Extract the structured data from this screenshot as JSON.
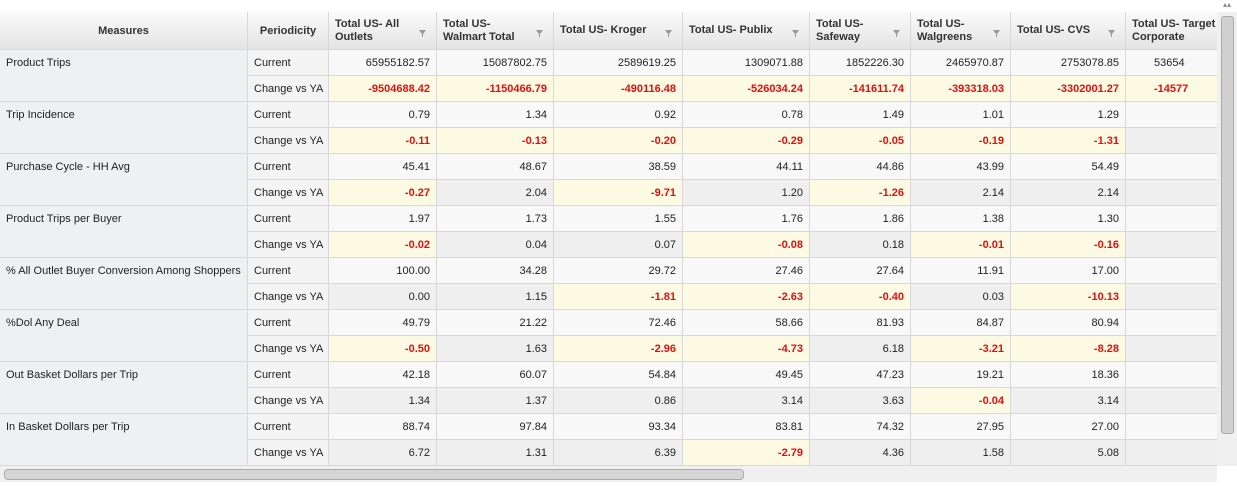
{
  "table": {
    "headers": [
      "Measures",
      "Periodicity",
      "Total US- All Outlets",
      "Total US- Walmart Total",
      "Total US- Kroger",
      "Total US- Publix",
      "Total US- Safeway",
      "Total US- Walgreens",
      "Total US- CVS",
      "Total US- Target Corporate"
    ],
    "rows": [
      {
        "measure": "Product Trips",
        "current": [
          "Current",
          "65955182.57",
          "15087802.75",
          "2589619.25",
          "1309071.88",
          "1852226.30",
          "2465970.87",
          "2753078.85",
          "53654"
        ],
        "change": [
          "Change vs YA",
          "-9504688.42",
          "-1150466.79",
          "-490116.48",
          "-526034.24",
          "-141611.74",
          "-393318.03",
          "-3302001.27",
          "-14577"
        ]
      },
      {
        "measure": "Trip Incidence",
        "current": [
          "Current",
          "0.79",
          "1.34",
          "0.92",
          "0.78",
          "1.49",
          "1.01",
          "1.29"
        ],
        "change": [
          "Change vs YA",
          "-0.11",
          "-0.13",
          "-0.20",
          "-0.29",
          "-0.05",
          "-0.19",
          "-1.31"
        ]
      },
      {
        "measure": "Purchase Cycle - HH Avg",
        "current": [
          "Current",
          "45.41",
          "48.67",
          "38.59",
          "44.11",
          "44.86",
          "43.99",
          "54.49"
        ],
        "change": [
          "Change vs YA",
          "-0.27",
          "2.04",
          "-9.71",
          "1.20",
          "-1.26",
          "2.14",
          "2.14"
        ]
      },
      {
        "measure": "Product Trips per Buyer",
        "current": [
          "Current",
          "1.97",
          "1.73",
          "1.55",
          "1.76",
          "1.86",
          "1.38",
          "1.30"
        ],
        "change": [
          "Change vs YA",
          "-0.02",
          "0.04",
          "0.07",
          "-0.08",
          "0.18",
          "-0.01",
          "-0.16"
        ]
      },
      {
        "measure": "% All Outlet Buyer Conversion Among Shoppers",
        "current": [
          "Current",
          "100.00",
          "34.28",
          "29.72",
          "27.46",
          "27.64",
          "11.91",
          "17.00"
        ],
        "change": [
          "Change vs YA",
          "0.00",
          "1.15",
          "-1.81",
          "-2.63",
          "-0.40",
          "0.03",
          "-10.13"
        ]
      },
      {
        "measure": "%Dol Any Deal",
        "current": [
          "Current",
          "49.79",
          "21.22",
          "72.46",
          "58.66",
          "81.93",
          "84.87",
          "80.94"
        ],
        "change": [
          "Change vs YA",
          "-0.50",
          "1.63",
          "-2.96",
          "-4.73",
          "6.18",
          "-3.21",
          "-8.28"
        ]
      },
      {
        "measure": "Out Basket Dollars per Trip",
        "current": [
          "Current",
          "42.18",
          "60.07",
          "54.84",
          "49.45",
          "47.23",
          "19.21",
          "18.36"
        ],
        "change": [
          "Change vs YA",
          "1.34",
          "1.37",
          "0.86",
          "3.14",
          "3.63",
          "-0.04",
          "3.14"
        ]
      },
      {
        "measure": "In Basket Dollars per Trip",
        "current": [
          "Current",
          "88.74",
          "97.84",
          "93.34",
          "83.81",
          "74.32",
          "27.95",
          "27.00"
        ],
        "change": [
          "Change vs YA",
          "6.72",
          "1.31",
          "6.39",
          "-2.79",
          "4.36",
          "1.58",
          "5.08"
        ]
      }
    ]
  }
}
